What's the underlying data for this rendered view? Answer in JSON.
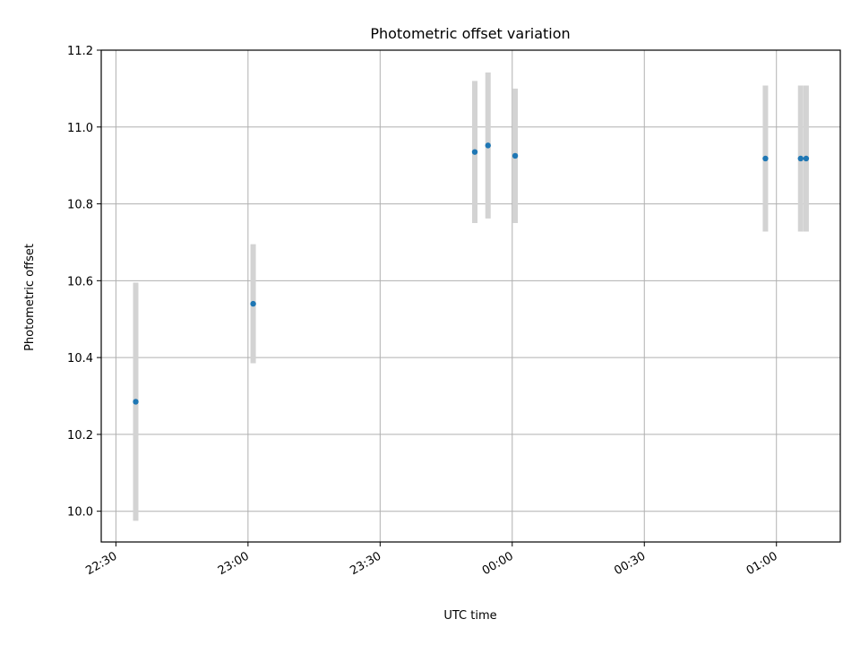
{
  "chart_data": {
    "type": "scatter",
    "title": "Photometric offset variation",
    "xlabel": "UTC time",
    "ylabel": "Photometric offset",
    "x_ticks": [
      "22:30",
      "23:00",
      "23:30",
      "00:00",
      "00:30",
      "01:00"
    ],
    "y_ticks": [
      "10.0",
      "10.2",
      "10.4",
      "10.6",
      "10.8",
      "11.0",
      "11.2"
    ],
    "x_range": [
      "22:26:40",
      "01:14:30"
    ],
    "ylim": [
      9.92,
      11.2
    ],
    "grid": true,
    "colors": {
      "points": "#1f77b4",
      "errorbars": "#d3d3d3",
      "grid": "#b0b0b0"
    },
    "points": [
      {
        "x": "22:34:30",
        "y": 10.285,
        "err": 0.31
      },
      {
        "x": "23:01:10",
        "y": 10.54,
        "err": 0.155
      },
      {
        "x": "23:51:30",
        "y": 10.935,
        "err": 0.185
      },
      {
        "x": "23:54:30",
        "y": 10.952,
        "err": 0.19
      },
      {
        "x": "00:00:40",
        "y": 10.925,
        "err": 0.175
      },
      {
        "x": "00:57:30",
        "y": 10.918,
        "err": 0.19
      },
      {
        "x": "01:05:30",
        "y": 10.918,
        "err": 0.19
      },
      {
        "x": "01:06:45",
        "y": 10.918,
        "err": 0.19
      }
    ]
  }
}
